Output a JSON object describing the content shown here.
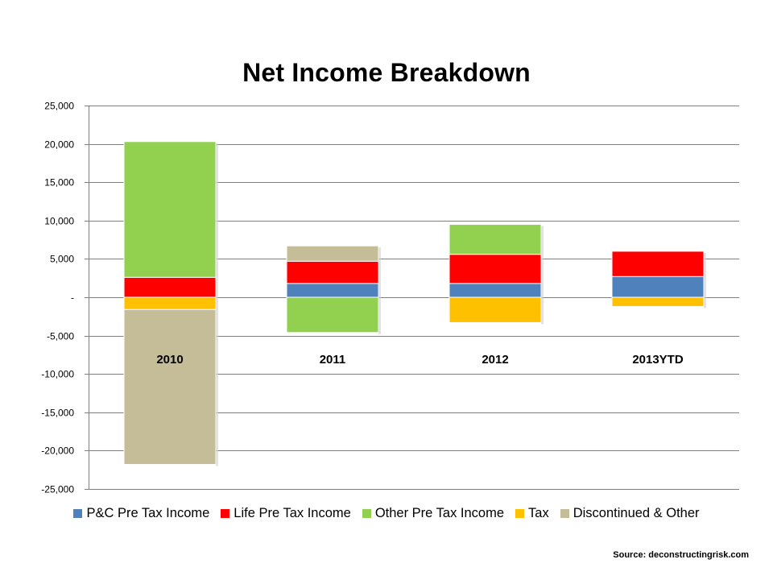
{
  "chart_data": {
    "type": "bar",
    "stacked": true,
    "title": "Net Income Breakdown",
    "categories": [
      "2010",
      "2011",
      "2012",
      "2013YTD"
    ],
    "series": [
      {
        "name": "P&C Pre Tax Income",
        "color": "#4F81BD",
        "values": [
          0,
          1800,
          1800,
          2700
        ]
      },
      {
        "name": "Life Pre Tax Income",
        "color": "#FF0000",
        "values": [
          2600,
          2900,
          3800,
          3300
        ]
      },
      {
        "name": "Other Pre Tax Income",
        "color": "#92D050",
        "values": [
          17700,
          -4600,
          3900,
          0
        ]
      },
      {
        "name": "Tax",
        "color": "#FFC000",
        "values": [
          -1600,
          0,
          -3300,
          -1200
        ]
      },
      {
        "name": "Discontinued & Other",
        "color": "#C4BD97",
        "values": [
          -20200,
          2000,
          0,
          0
        ]
      }
    ],
    "ylim": [
      -25000,
      25000
    ],
    "y_ticks": [
      25000,
      20000,
      15000,
      10000,
      5000,
      0,
      -5000,
      -10000,
      -15000,
      -20000,
      -25000
    ],
    "y_tick_labels": [
      "25,000",
      "20,000",
      "15,000",
      "10,000",
      "5,000",
      "-",
      "-5,000",
      "-10,000",
      "-15,000",
      "-20,000",
      "-25,000"
    ],
    "xlabel": "",
    "ylabel": "",
    "grid": true,
    "legend_position": "bottom"
  },
  "source": "Source: deconstructingrisk.com"
}
